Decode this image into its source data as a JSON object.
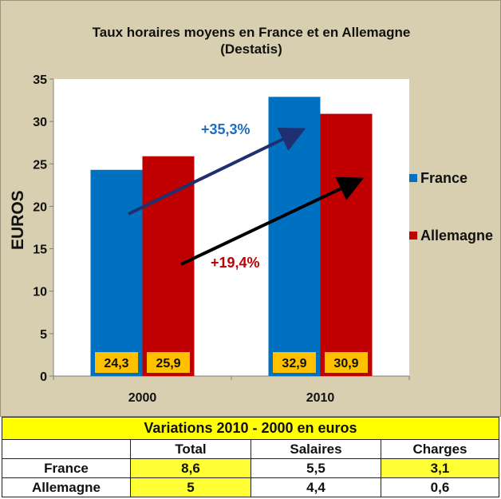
{
  "chart_data": {
    "type": "bar",
    "title": "Taux horaires moyens  en France et en Allemagne",
    "subtitle": "(Destatis)",
    "ylabel": "EUROS",
    "xlabel": "",
    "ylim": [
      0,
      35
    ],
    "yticks": [
      0,
      5,
      10,
      15,
      20,
      25,
      30,
      35
    ],
    "grid": false,
    "legend": "right",
    "categories": [
      "2000",
      "2010"
    ],
    "series": [
      {
        "name": "France",
        "color": "#0070c0",
        "values": [
          24.3,
          32.9
        ],
        "labels": [
          "24,3",
          "32,9"
        ]
      },
      {
        "name": "Allemagne",
        "color": "#c00000",
        "values": [
          25.9,
          30.9
        ],
        "labels": [
          "25,9",
          "30,9"
        ]
      }
    ],
    "annotations": [
      {
        "text": "+35,3%",
        "color": "#1f6fbf",
        "arrow_color": "#1f2f6f"
      },
      {
        "text": "+19,4%",
        "color": "#c00000",
        "arrow_color": "#000000"
      }
    ]
  },
  "table": {
    "title": "Variations 2010 - 2000 en euros",
    "columns": [
      "",
      "Total",
      "Salaires",
      "Charges"
    ],
    "rows": [
      {
        "label": "France",
        "cells": [
          "8,6",
          "5,5",
          "3,1"
        ]
      },
      {
        "label": "Allemagne",
        "cells": [
          "5",
          "4,4",
          "0,6"
        ]
      }
    ]
  }
}
